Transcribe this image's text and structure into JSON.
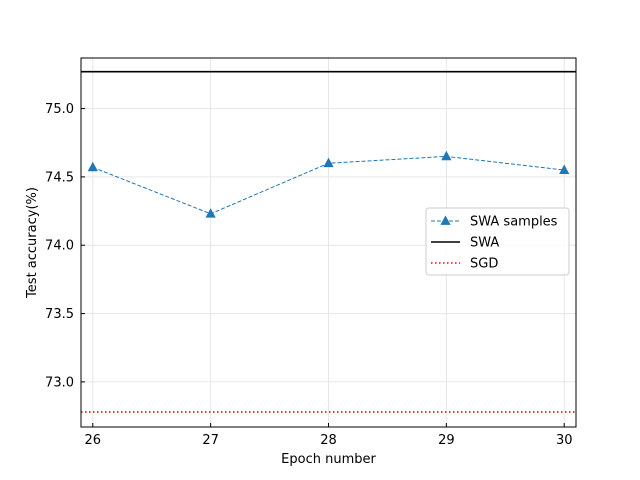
{
  "chart_data": {
    "type": "line",
    "xlabel": "Epoch number",
    "ylabel": "Test accuracy(%)",
    "xlim": [
      25.9,
      30.1
    ],
    "ylim": [
      72.67,
      75.37
    ],
    "x_ticks": [
      26,
      27,
      28,
      29,
      30
    ],
    "y_ticks": [
      73.0,
      73.5,
      74.0,
      74.5,
      75.0
    ],
    "x_tick_labels": [
      "26",
      "27",
      "28",
      "29",
      "30"
    ],
    "y_tick_labels": [
      "73.0",
      "73.5",
      "74.0",
      "74.5",
      "75.0"
    ],
    "grid": true,
    "legend_position": "center-right",
    "series": [
      {
        "name": "SWA samples",
        "kind": "line-markers",
        "marker": "triangle-up",
        "line_style": "dashed",
        "color": "#1f77b4",
        "x": [
          26,
          27,
          28,
          29,
          30
        ],
        "y": [
          74.57,
          74.23,
          74.6,
          74.65,
          74.55
        ]
      },
      {
        "name": "SWA",
        "kind": "hline",
        "line_style": "solid",
        "color": "#000000",
        "y": 75.27
      },
      {
        "name": "SGD",
        "kind": "hline",
        "line_style": "dotted",
        "color": "#ff0000",
        "y": 72.78
      }
    ]
  }
}
